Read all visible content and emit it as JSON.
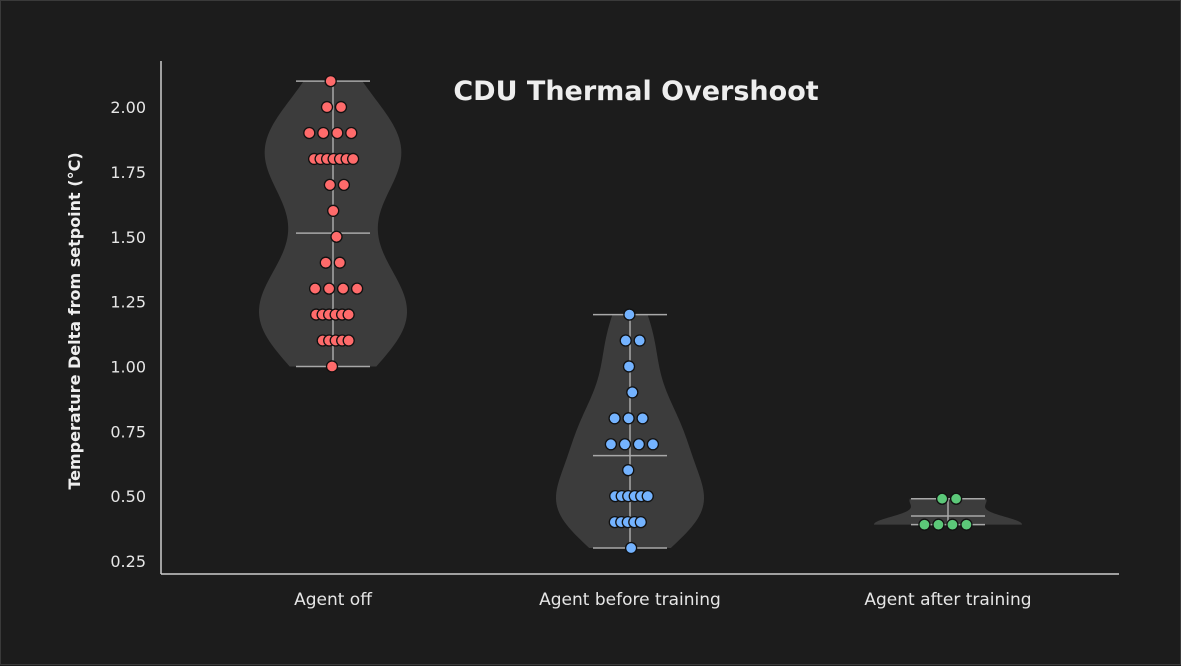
{
  "chart_data": {
    "type": "violin",
    "title": "CDU Thermal Overshoot",
    "xlabel": "",
    "ylabel": "Temperature Delta from setpoint (°C)",
    "ylim": [
      0.25,
      2.15
    ],
    "yticks": [
      "0.25",
      "0.50",
      "0.75",
      "1.00",
      "1.25",
      "1.50",
      "1.75",
      "2.00"
    ],
    "grid": false,
    "shows_means": true,
    "categories": [
      "Agent off",
      "Agent before training",
      "Agent after training"
    ],
    "series": [
      {
        "color": "#ff6b6b",
        "values": [
          2.1,
          2.0,
          2.0,
          1.9,
          1.9,
          1.9,
          1.9,
          1.8,
          1.8,
          1.8,
          1.8,
          1.8,
          1.8,
          1.8,
          1.7,
          1.7,
          1.6,
          1.5,
          1.4,
          1.4,
          1.3,
          1.3,
          1.3,
          1.3,
          1.2,
          1.2,
          1.2,
          1.2,
          1.2,
          1.2,
          1.1,
          1.1,
          1.1,
          1.1,
          1.1,
          1.0
        ]
      },
      {
        "color": "#74b3ff",
        "values": [
          1.2,
          1.1,
          1.1,
          1.0,
          0.9,
          0.8,
          0.8,
          0.8,
          0.7,
          0.7,
          0.7,
          0.7,
          0.6,
          0.5,
          0.5,
          0.5,
          0.5,
          0.5,
          0.5,
          0.4,
          0.4,
          0.4,
          0.4,
          0.4,
          0.3
        ]
      },
      {
        "color": "#5cc879",
        "values": [
          0.49,
          0.49,
          0.39,
          0.39,
          0.39,
          0.39
        ]
      }
    ],
    "colors": {
      "violin_fill": "#3c3c3c",
      "lines": "#a8a8a8",
      "axis": "#cccccc",
      "background": "#1c1c1c"
    }
  }
}
